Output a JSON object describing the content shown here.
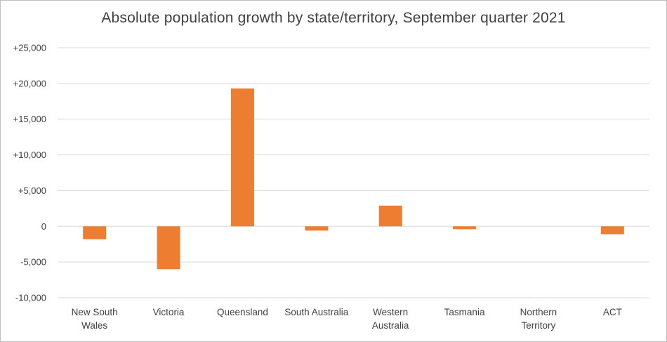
{
  "chart_data": {
    "type": "bar",
    "title": "Absolute population growth by state/territory, September quarter 2021",
    "xlabel": "",
    "ylabel": "",
    "categories": [
      [
        "New South",
        "Wales"
      ],
      [
        "Victoria"
      ],
      [
        "Queensland"
      ],
      [
        "South Australia"
      ],
      [
        "Western",
        "Australia"
      ],
      [
        "Tasmania"
      ],
      [
        "Northern",
        "Territory"
      ],
      [
        "ACT"
      ]
    ],
    "values": [
      -1800,
      -6000,
      19300,
      -600,
      2900,
      -400,
      0,
      -1100
    ],
    "ylim": [
      -10000,
      25000
    ],
    "yticks": [
      25000,
      20000,
      15000,
      10000,
      5000,
      0,
      -5000,
      -10000
    ],
    "ytick_labels": [
      "+25,000",
      "+20,000",
      "+15,000",
      "+10,000",
      "+5,000",
      "0",
      "-5,000",
      "-10,000"
    ],
    "grid": true,
    "bar_color": "#ed7d31",
    "grid_color": "#d9d9d9"
  }
}
